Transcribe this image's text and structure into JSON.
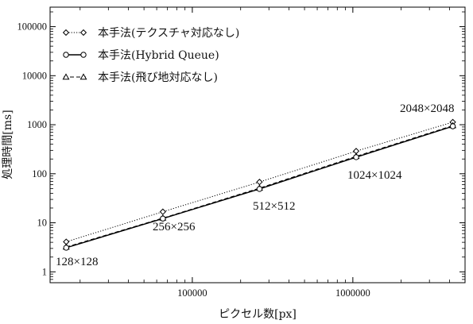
{
  "chart_data": {
    "type": "line",
    "xlabel": "ピクセル数[px]",
    "ylabel": "処理時間[ms]",
    "x_scale": "log",
    "y_scale": "log",
    "xlim": [
      13000,
      5000000
    ],
    "ylim": [
      0.6,
      250000
    ],
    "x_ticks": [
      100000,
      1000000
    ],
    "x_tick_labels": [
      "100000",
      "1000000"
    ],
    "y_ticks": [
      1,
      10,
      100,
      1000,
      10000,
      100000
    ],
    "y_tick_labels": [
      "1",
      "10",
      "100",
      "1000",
      "10000",
      "100000"
    ],
    "x": [
      16384,
      65536,
      262144,
      1048576,
      4194304
    ],
    "series": [
      {
        "name": "本手法(テクスチャ対応なし)",
        "values": [
          4.1,
          16.8,
          68,
          290,
          1130
        ],
        "line_style": "dotted",
        "marker": "diamond",
        "color": "#000000"
      },
      {
        "name": "本手法(Hybrid Queue)",
        "values": [
          3.1,
          12.2,
          49,
          218,
          930
        ],
        "line_style": "solid",
        "marker": "circle",
        "color": "#000000"
      },
      {
        "name": "本手法(飛び地対応なし)",
        "values": [
          3.2,
          12.5,
          51,
          226,
          960
        ],
        "line_style": "dashed",
        "marker": "triangle",
        "color": "#000000"
      }
    ],
    "annotations": [
      "128×128",
      "256×256",
      "512×512",
      "1024×1024",
      "2048×2048"
    ],
    "legend_position": "top-left",
    "grid": false
  }
}
